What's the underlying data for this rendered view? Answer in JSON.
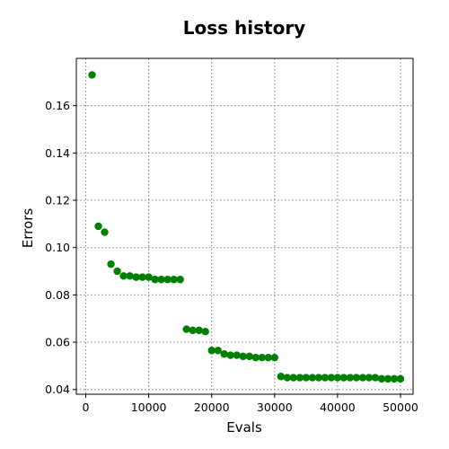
{
  "chart_data": {
    "type": "scatter",
    "title": "Loss history",
    "xlabel": "Evals",
    "ylabel": "Errors",
    "xlim": [
      -1500,
      52000
    ],
    "ylim": [
      0.038,
      0.18
    ],
    "xticks": [
      0,
      10000,
      20000,
      30000,
      40000,
      50000
    ],
    "xtick_labels": [
      "0",
      "10000",
      "20000",
      "30000",
      "40000",
      "50000"
    ],
    "yticks": [
      0.04,
      0.06,
      0.08,
      0.1,
      0.12,
      0.14,
      0.16
    ],
    "ytick_labels": [
      "0.04",
      "0.06",
      "0.08",
      "0.10",
      "0.12",
      "0.14",
      "0.16"
    ],
    "grid": true,
    "marker_color": "#008000",
    "series": [
      {
        "x": [
          1000,
          2000,
          3000,
          4000,
          5000,
          6000,
          7000,
          8000,
          9000,
          10000,
          11000,
          12000,
          13000,
          14000,
          15000,
          16000,
          17000,
          18000,
          19000,
          20000,
          21000,
          22000,
          23000,
          24000,
          25000,
          26000,
          27000,
          28000,
          29000,
          30000,
          31000,
          32000,
          33000,
          34000,
          35000,
          36000,
          37000,
          38000,
          39000,
          40000,
          41000,
          42000,
          43000,
          44000,
          45000,
          46000,
          47000,
          48000,
          49000,
          50000
        ],
        "y": [
          0.173,
          0.109,
          0.1065,
          0.093,
          0.09,
          0.088,
          0.088,
          0.0875,
          0.0875,
          0.0875,
          0.0865,
          0.0865,
          0.0865,
          0.0865,
          0.0865,
          0.0655,
          0.065,
          0.065,
          0.0645,
          0.0565,
          0.0565,
          0.055,
          0.0545,
          0.0545,
          0.054,
          0.054,
          0.0535,
          0.0535,
          0.0535,
          0.0535,
          0.0455,
          0.045,
          0.045,
          0.045,
          0.045,
          0.045,
          0.045,
          0.045,
          0.045,
          0.045,
          0.045,
          0.045,
          0.045,
          0.045,
          0.045,
          0.045,
          0.0445,
          0.0445,
          0.0445,
          0.0445
        ]
      }
    ]
  }
}
